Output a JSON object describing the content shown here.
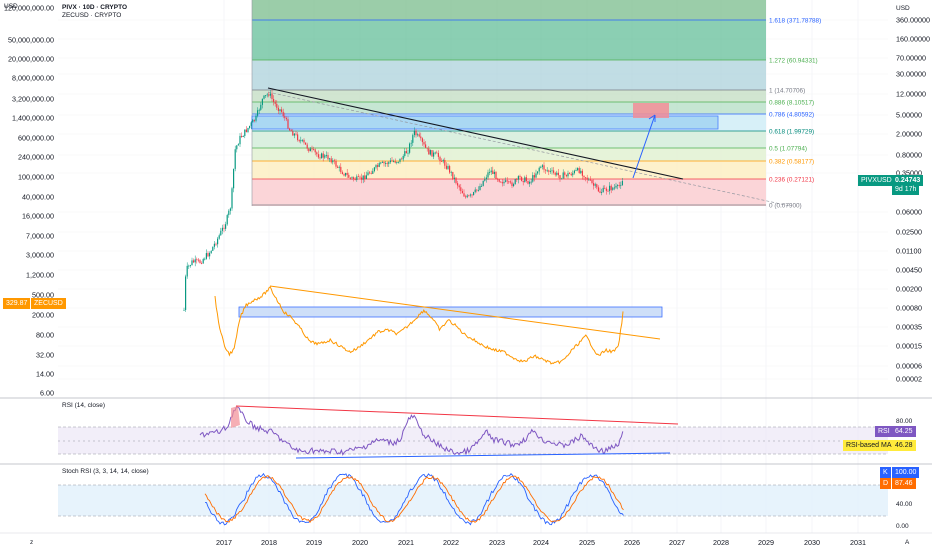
{
  "header": {
    "currency": "USD",
    "currency_right": "USD",
    "symbol_line": "PIVX · 10D · CRYPTO",
    "compare_line": "ZECUSD · CRYPTO"
  },
  "left_scale_ticks": [
    "120,000,000.00",
    "50,000,000.00",
    "20,000,000.00",
    "8,000,000.00",
    "3,200,000.00",
    "1,400,000.00",
    "600,000.00",
    "240,000.00",
    "100,000.00",
    "40,000.00",
    "16,000.00",
    "7,000.00",
    "3,000.00",
    "1,200.00",
    "500.00",
    "200.00",
    "80.00",
    "32.00",
    "14.00",
    "6.00"
  ],
  "right_scale_ticks": [
    "360.00000",
    "160.00000",
    "70.00000",
    "30.00000",
    "12.00000",
    "5.00000",
    "2.00000",
    "0.80000",
    "0.35000",
    "0.06000",
    "0.02500",
    "0.01100",
    "0.00450",
    "0.00200",
    "0.00080",
    "0.00035",
    "0.00015",
    "0.00006",
    "0.00002"
  ],
  "x_axis_ticks": [
    "2017",
    "2018",
    "2019",
    "2020",
    "2021",
    "2022",
    "2023",
    "2024",
    "2025",
    "2026",
    "2027",
    "2028",
    "2029",
    "2030",
    "2031"
  ],
  "fib_levels": [
    {
      "label": "1.618 (371.78788)",
      "color": "#2962ff"
    },
    {
      "label": "1.272 (60.94331)",
      "color": "#4caf50"
    },
    {
      "label": "1 (14.70706)",
      "color": "#787b86"
    },
    {
      "label": "0.886 (8.10517)",
      "color": "#4caf50"
    },
    {
      "label": "0.786 (4.80592)",
      "color": "#2962ff"
    },
    {
      "label": "0.618 (1.99729)",
      "color": "#00897b"
    },
    {
      "label": "0.5 (1.07794)",
      "color": "#4caf50"
    },
    {
      "label": "0.382 (0.58177)",
      "color": "#ff9800"
    },
    {
      "label": "0.236 (0.27121)",
      "color": "#f23645"
    },
    {
      "label": "0 (0.07900)",
      "color": "#787b86"
    }
  ],
  "price_badge": {
    "symbol": "PIVXUSD",
    "value": "0.24743",
    "countdown": "9d 17h",
    "color": "#089981"
  },
  "zec_badge": {
    "value": "329.87",
    "symbol": "ZECUSD",
    "color": "#ff9800"
  },
  "rsi": {
    "title": "RSI (14, close)",
    "ticks": [
      "80.00",
      "46.28"
    ],
    "rsi_label": "RSI",
    "rsi_value": "64.25",
    "ma_label": "RSI-based MA",
    "ma_value": "46.28",
    "top_tick": "80.00"
  },
  "stoch": {
    "title": "Stoch RSI (3, 3, 14, 14, close)",
    "k_label": "K",
    "k_value": "100.00",
    "d_label": "D",
    "d_value": "87.46",
    "ticks": [
      "40.00",
      "0.00"
    ]
  },
  "colors": {
    "up": "#089981",
    "down": "#f23645",
    "zec": "#ff9800",
    "rsi": "#7e57c2",
    "trend": "#131722",
    "resist": "#f23645",
    "support": "#2962ff"
  },
  "chart_data": [
    {
      "type": "candlestick",
      "title": "PIVX · 10D · CRYPTO",
      "series": [
        {
          "name": "PIVXUSD",
          "last": 0.24743
        }
      ],
      "x": [
        "2017",
        "2018",
        "2019",
        "2020",
        "2021",
        "2022",
        "2023",
        "2024",
        "2025",
        "2026"
      ],
      "y_scale": "log"
    },
    {
      "type": "line",
      "series": [
        {
          "name": "ZECUSD",
          "last": 329.87
        }
      ]
    },
    {
      "type": "line",
      "title": "RSI (14, close)",
      "series": [
        {
          "name": "RSI",
          "last": 64.25
        },
        {
          "name": "RSI-based MA",
          "last": 46.28
        }
      ]
    },
    {
      "type": "line",
      "title": "Stoch RSI (3, 3, 14, 14, close)",
      "series": [
        {
          "name": "K",
          "last": 100.0
        },
        {
          "name": "D",
          "last": 87.46
        }
      ]
    }
  ]
}
